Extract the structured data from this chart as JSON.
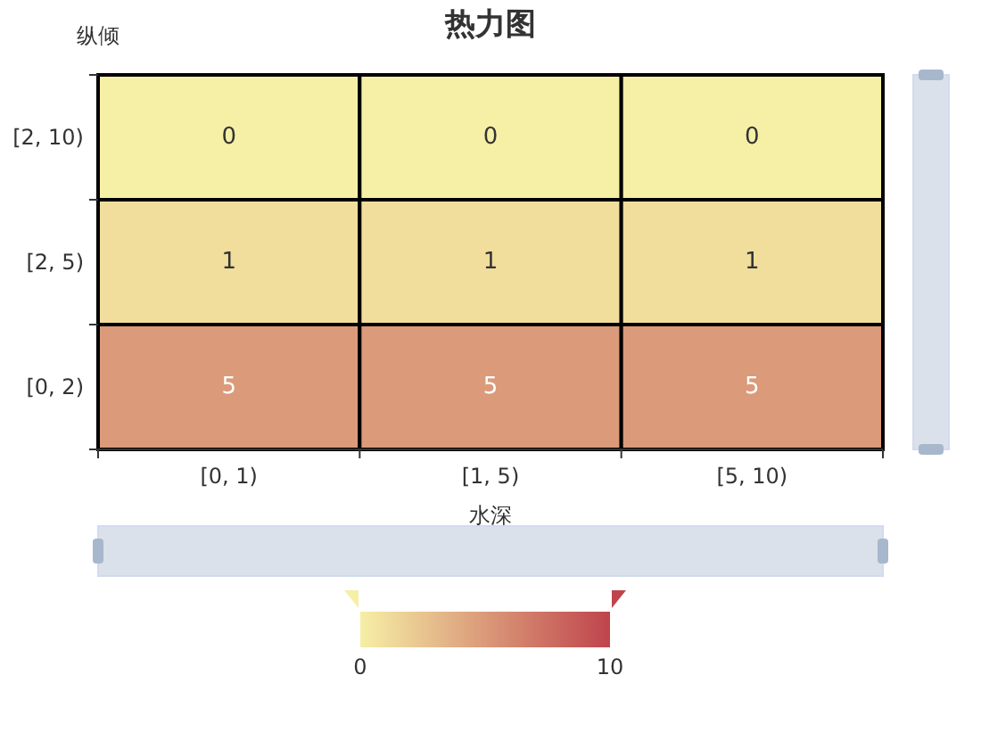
{
  "chart_data": {
    "type": "heatmap",
    "title": "热力图",
    "xlabel": "水深",
    "ylabel": "纵倾",
    "categories": [
      "[0, 1)",
      "[1, 5)",
      "[5, 10)"
    ],
    "y_categories": [
      "[2, 10)",
      "[2, 5)",
      "[0, 2)"
    ],
    "cells": [
      [
        0,
        0,
        0
      ],
      [
        1,
        1,
        1
      ],
      [
        5,
        5,
        5
      ]
    ],
    "data_labels": true,
    "clim": [
      0,
      10
    ],
    "cticks": [
      0,
      10
    ]
  }
}
